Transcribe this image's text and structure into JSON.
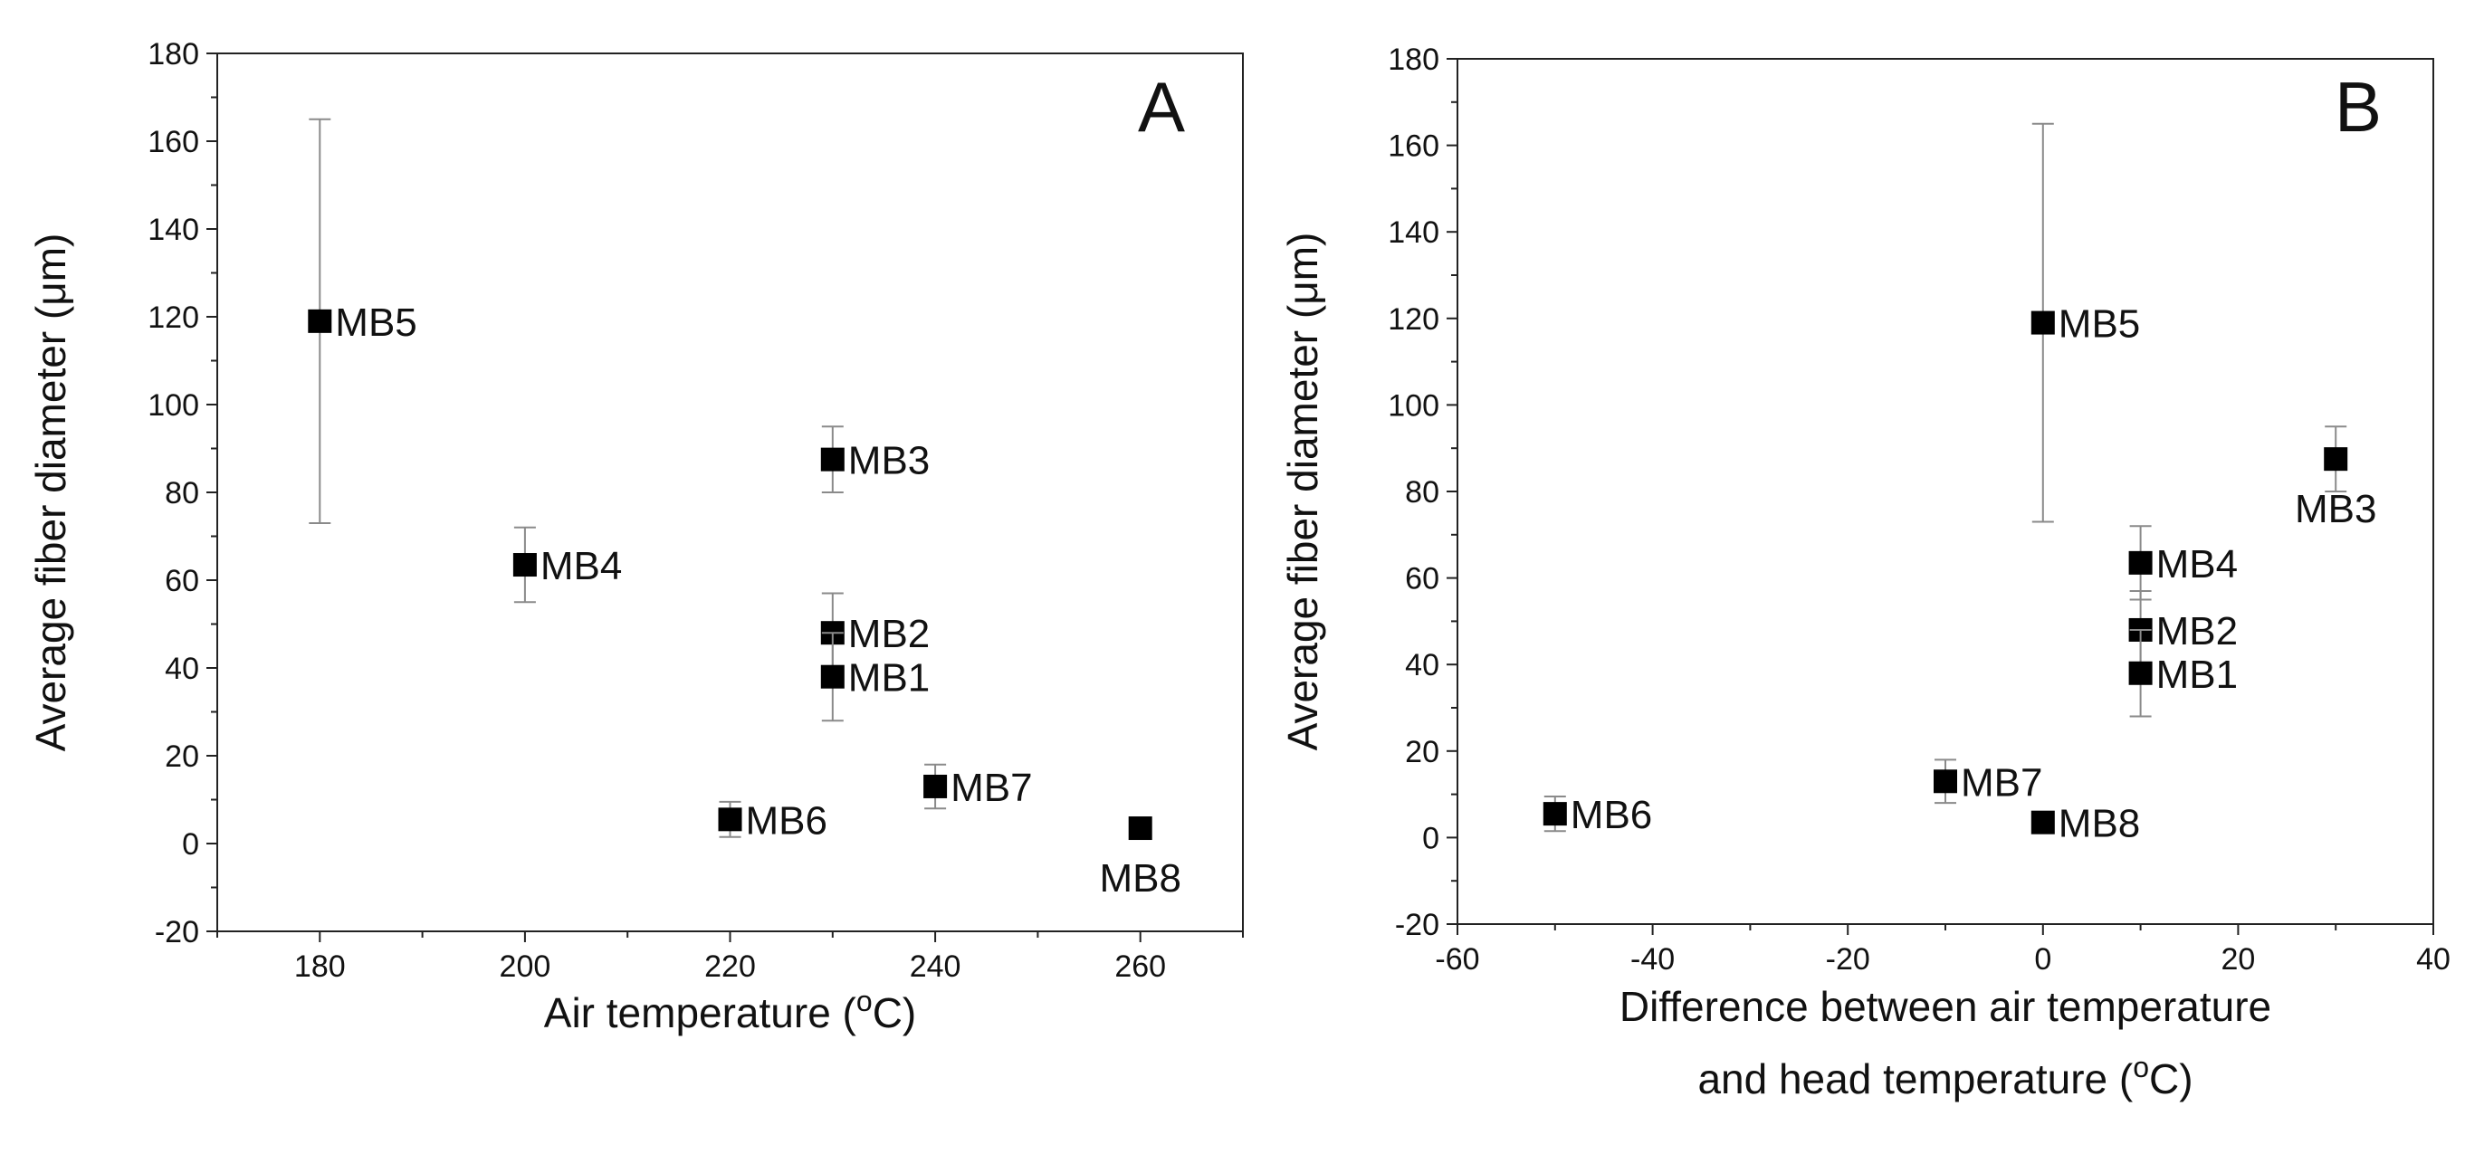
{
  "chart_data": [
    {
      "type": "scatter",
      "panel": "A",
      "xlabel": "Air temperature (",
      "xlabel_sup": "o",
      "xlabel_end": "C)",
      "ylabel": "Average fiber diameter (μm)",
      "xlim": [
        170,
        270
      ],
      "ylim": [
        -20,
        180
      ],
      "xticks": [
        180,
        200,
        220,
        240,
        260
      ],
      "yticks": [
        -20,
        0,
        20,
        40,
        60,
        80,
        100,
        120,
        140,
        160,
        180
      ],
      "points": [
        {
          "label": "MB5",
          "x": 180,
          "y": 119,
          "err_low": 73,
          "err_high": 165,
          "label_pos": "right"
        },
        {
          "label": "MB4",
          "x": 200,
          "y": 63.5,
          "err_low": 55,
          "err_high": 72,
          "label_pos": "right"
        },
        {
          "label": "MB3",
          "x": 230,
          "y": 87.5,
          "err_low": 80,
          "err_high": 95,
          "label_pos": "right"
        },
        {
          "label": "MB2",
          "x": 230,
          "y": 48,
          "err_low": 39,
          "err_high": 57,
          "label_pos": "right"
        },
        {
          "label": "MB1",
          "x": 230,
          "y": 38,
          "err_low": 28,
          "err_high": 48,
          "label_pos": "right"
        },
        {
          "label": "MB6",
          "x": 220,
          "y": 5.5,
          "err_low": 1.5,
          "err_high": 9.5,
          "label_pos": "right"
        },
        {
          "label": "MB7",
          "x": 240,
          "y": 13,
          "err_low": 8,
          "err_high": 18,
          "label_pos": "right"
        },
        {
          "label": "MB8",
          "x": 260,
          "y": 3.5,
          "err_low": 2,
          "err_high": 5,
          "label_pos": "below"
        }
      ]
    },
    {
      "type": "scatter",
      "panel": "B",
      "xlabel": "Difference between air temperature",
      "xlabel2": "and head temperature (",
      "xlabel_sup": "o",
      "xlabel_end": "C)",
      "ylabel": "Average fiber diameter (μm)",
      "xlim": [
        -60,
        40
      ],
      "ylim": [
        -20,
        180
      ],
      "xticks": [
        -60,
        -40,
        -20,
        0,
        20,
        40
      ],
      "yticks": [
        -20,
        0,
        20,
        40,
        60,
        80,
        100,
        120,
        140,
        160,
        180
      ],
      "points": [
        {
          "label": "MB5",
          "x": 0,
          "y": 119,
          "err_low": 73,
          "err_high": 165,
          "label_pos": "right"
        },
        {
          "label": "MB3",
          "x": 30,
          "y": 87.5,
          "err_low": 80,
          "err_high": 95,
          "label_pos": "below"
        },
        {
          "label": "MB4",
          "x": 10,
          "y": 63.5,
          "err_low": 55,
          "err_high": 72,
          "label_pos": "right"
        },
        {
          "label": "MB2",
          "x": 10,
          "y": 48,
          "err_low": 39,
          "err_high": 57,
          "label_pos": "right"
        },
        {
          "label": "MB1",
          "x": 10,
          "y": 38,
          "err_low": 28,
          "err_high": 48,
          "label_pos": "right"
        },
        {
          "label": "MB7",
          "x": -10,
          "y": 13,
          "err_low": 8,
          "err_high": 18,
          "label_pos": "right"
        },
        {
          "label": "MB8",
          "x": 0,
          "y": 3.5,
          "err_low": 2,
          "err_high": 5,
          "label_pos": "right"
        },
        {
          "label": "MB6",
          "x": -50,
          "y": 5.5,
          "err_low": 1.5,
          "err_high": 9.5,
          "label_pos": "right"
        }
      ]
    }
  ]
}
